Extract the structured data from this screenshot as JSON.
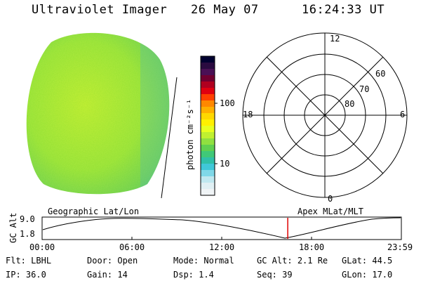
{
  "header": {
    "title": "Ultraviolet Imager",
    "date": "26 May 07",
    "time": "16:24:33 UT"
  },
  "colorbar": {
    "unit_label": "photon cm⁻²s⁻¹",
    "ticks": [
      "100",
      "10"
    ],
    "colors_top_to_bottom": [
      "#000030",
      "#2a0a40",
      "#4a1055",
      "#700030",
      "#b00020",
      "#e00010",
      "#ff4000",
      "#ff8800",
      "#ffb000",
      "#ffd800",
      "#fff000",
      "#e8ff20",
      "#c0f030",
      "#90e040",
      "#60d050",
      "#40c878",
      "#30c0a8",
      "#40c8d8",
      "#80d8e8",
      "#c0e8f0",
      "#e0f0f4",
      "#f0f4f6"
    ]
  },
  "polar": {
    "hour_labels": {
      "top": "12",
      "left": "18",
      "right": "6",
      "bottom": "0"
    },
    "lat_labels": [
      "60",
      "70",
      "80"
    ]
  },
  "timeline": {
    "left_title": "Geographic Lat/Lon",
    "right_title": "Apex MLat/MLT",
    "ylabel": "GC Alt",
    "yticks": [
      "9.0",
      "1.8"
    ],
    "xticks": [
      "00:00",
      "06:00",
      "12:00",
      "18:00",
      "23:59"
    ],
    "marker_time": "16:24",
    "marker_color": "#e00000"
  },
  "footer": {
    "row1": [
      {
        "label": "Flt:",
        "value": "LBHL"
      },
      {
        "label": "Door:",
        "value": "Open"
      },
      {
        "label": "Mode:",
        "value": "Normal"
      },
      {
        "label": "GC Alt:",
        "value": "2.1 Re"
      },
      {
        "label": "GLat:",
        "value": "44.5"
      }
    ],
    "row2": [
      {
        "label": "IP:",
        "value": "36.0"
      },
      {
        "label": "Gain:",
        "value": "14"
      },
      {
        "label": "Dsp:",
        "value": "1.4"
      },
      {
        "label": "Seq:",
        "value": "39"
      },
      {
        "label": "GLon:",
        "value": "17.0"
      }
    ]
  }
}
